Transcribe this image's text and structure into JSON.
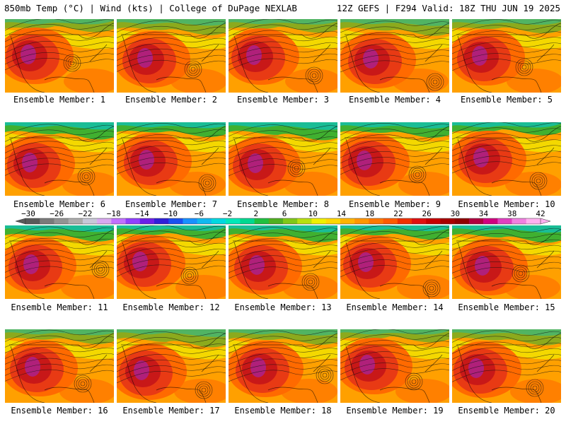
{
  "header": {
    "left": "850mb Temp (°C) | Wind (kts) | College of DuPage NEXLAB",
    "right": "12Z GEFS | F294 Valid: 18Z THU JUN 19 2025"
  },
  "panels": [
    {
      "label": "Ensemble Member: 1"
    },
    {
      "label": "Ensemble Member: 2"
    },
    {
      "label": "Ensemble Member: 3"
    },
    {
      "label": "Ensemble Member: 4"
    },
    {
      "label": "Ensemble Member: 5"
    },
    {
      "label": "Ensemble Member: 6"
    },
    {
      "label": "Ensemble Member: 7"
    },
    {
      "label": "Ensemble Member: 8"
    },
    {
      "label": "Ensemble Member: 9"
    },
    {
      "label": "Ensemble Member: 10"
    },
    {
      "label": "Ensemble Member: 11"
    },
    {
      "label": "Ensemble Member: 12"
    },
    {
      "label": "Ensemble Member: 13"
    },
    {
      "label": "Ensemble Member: 14"
    },
    {
      "label": "Ensemble Member: 15"
    },
    {
      "label": "Ensemble Member: 16"
    },
    {
      "label": "Ensemble Member: 17"
    },
    {
      "label": "Ensemble Member: 18"
    },
    {
      "label": "Ensemble Member: 19"
    },
    {
      "label": "Ensemble Member: 20"
    }
  ],
  "colorbar": {
    "tick_labels": [
      "−30",
      "−26",
      "−22",
      "−18",
      "−14",
      "−10",
      "−6",
      "−2",
      "2",
      "6",
      "10",
      "14",
      "18",
      "22",
      "26",
      "30",
      "34",
      "38",
      "42"
    ],
    "colors": [
      "#5a5a5a",
      "#7a7a7a",
      "#939393",
      "#acacac",
      "#c8c8d8",
      "#d8a8f0",
      "#c070ff",
      "#9040ff",
      "#6a20e8",
      "#3020d8",
      "#1a50f0",
      "#1890ff",
      "#10b8f0",
      "#00d8e0",
      "#00e8b8",
      "#00d890",
      "#20c040",
      "#50b020",
      "#80c818",
      "#b8e010",
      "#f0f000",
      "#ffd800",
      "#ffb400",
      "#ff9600",
      "#ff7800",
      "#ff5a00",
      "#f03000",
      "#e01010",
      "#c80000",
      "#a80000",
      "#900000",
      "#b00040",
      "#d00080",
      "#e040c0",
      "#f080e0",
      "#ffb0f0"
    ]
  },
  "colors": {
    "hot_magenta": "#b0207a",
    "dark_red": "#c81818",
    "red": "#e83a14",
    "orange_red": "#ff6a00",
    "orange": "#ffa000",
    "yellow": "#f4d800",
    "green": "#40b030",
    "teal": "#10c0b0"
  }
}
